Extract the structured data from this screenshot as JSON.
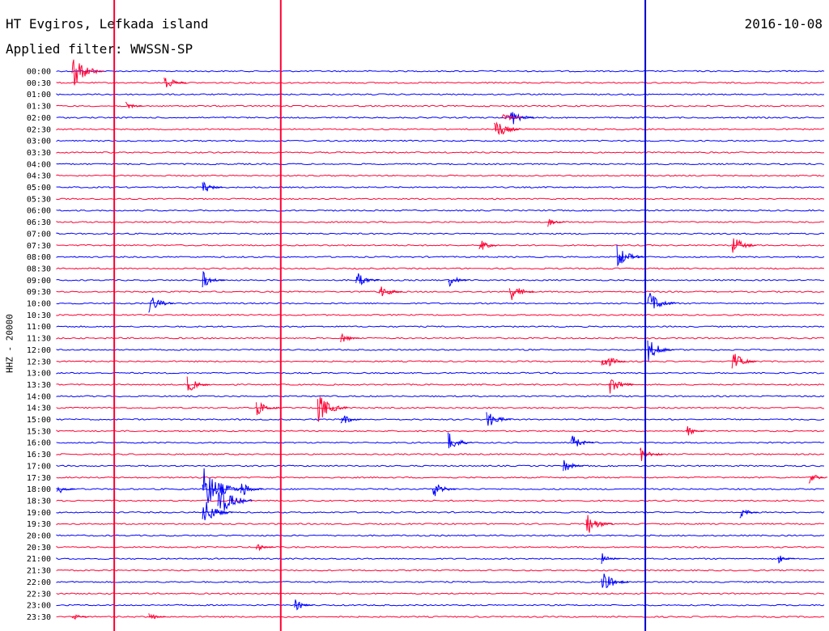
{
  "header": {
    "station": "HT Evgiros, Lefkada island",
    "date": "2016-10-08",
    "filter": "Applied filter: WWSSN-SP"
  },
  "chart_data": {
    "type": "line",
    "title": "HT Evgiros, Lefkada island",
    "ylabel": "HHZ - 20000",
    "ytick_labels": [
      "00:00",
      "00:30",
      "01:00",
      "01:30",
      "02:00",
      "02:30",
      "03:00",
      "03:30",
      "04:00",
      "04:30",
      "05:00",
      "05:30",
      "06:00",
      "06:30",
      "07:00",
      "07:30",
      "08:00",
      "08:30",
      "09:00",
      "09:30",
      "10:00",
      "10:30",
      "11:00",
      "11:30",
      "12:00",
      "12:30",
      "13:00",
      "13:30",
      "14:00",
      "14:30",
      "15:00",
      "15:30",
      "16:00",
      "16:30",
      "17:00",
      "17:30",
      "18:00",
      "18:30",
      "19:00",
      "19:30",
      "20:00",
      "20:30",
      "21:00",
      "21:30",
      "22:00",
      "22:30",
      "23:00",
      "23:30"
    ],
    "trace_colors": [
      "#0000ff",
      "#ff0033"
    ],
    "tall_spikes": [
      {
        "fraction": 0.075,
        "color": "#ff0033"
      },
      {
        "fraction": 0.292,
        "color": "#ff0033"
      },
      {
        "fraction": 0.767,
        "color": "#0000cc"
      }
    ],
    "events": [
      {
        "row": 0,
        "fraction": 0.02,
        "amp": 22,
        "color": "#ff0033"
      },
      {
        "row": 1,
        "fraction": 0.14,
        "amp": 12,
        "color": "#ff0033"
      },
      {
        "row": 3,
        "fraction": 0.09,
        "amp": 6,
        "color": "#ff0033"
      },
      {
        "row": 4,
        "fraction": 0.59,
        "amp": 14,
        "color": "#0000ff"
      },
      {
        "row": 4,
        "fraction": 0.58,
        "amp": 10,
        "color": "#ff0033"
      },
      {
        "row": 5,
        "fraction": 0.57,
        "amp": 16,
        "color": "#ff0033"
      },
      {
        "row": 10,
        "fraction": 0.19,
        "amp": 10,
        "color": "#0000ff"
      },
      {
        "row": 13,
        "fraction": 0.64,
        "amp": 6,
        "color": "#ff0033"
      },
      {
        "row": 15,
        "fraction": 0.55,
        "amp": 10,
        "color": "#ff0033"
      },
      {
        "row": 15,
        "fraction": 0.88,
        "amp": 14,
        "color": "#ff0033"
      },
      {
        "row": 16,
        "fraction": 0.73,
        "amp": 16,
        "color": "#0000ff"
      },
      {
        "row": 18,
        "fraction": 0.19,
        "amp": 12,
        "color": "#0000ff"
      },
      {
        "row": 18,
        "fraction": 0.39,
        "amp": 12,
        "color": "#0000ff"
      },
      {
        "row": 18,
        "fraction": 0.51,
        "amp": 10,
        "color": "#0000ff"
      },
      {
        "row": 19,
        "fraction": 0.42,
        "amp": 12,
        "color": "#ff0033"
      },
      {
        "row": 19,
        "fraction": 0.59,
        "amp": 14,
        "color": "#ff0033"
      },
      {
        "row": 20,
        "fraction": 0.12,
        "amp": 14,
        "color": "#0000ff"
      },
      {
        "row": 20,
        "fraction": 0.77,
        "amp": 18,
        "color": "#0000ff"
      },
      {
        "row": 23,
        "fraction": 0.37,
        "amp": 8,
        "color": "#ff0033"
      },
      {
        "row": 24,
        "fraction": 0.77,
        "amp": 16,
        "color": "#0000ff"
      },
      {
        "row": 25,
        "fraction": 0.71,
        "amp": 14,
        "color": "#ff0033"
      },
      {
        "row": 25,
        "fraction": 0.88,
        "amp": 14,
        "color": "#ff0033"
      },
      {
        "row": 27,
        "fraction": 0.17,
        "amp": 12,
        "color": "#ff0033"
      },
      {
        "row": 27,
        "fraction": 0.72,
        "amp": 14,
        "color": "#ff0033"
      },
      {
        "row": 29,
        "fraction": 0.26,
        "amp": 12,
        "color": "#ff0033"
      },
      {
        "row": 29,
        "fraction": 0.34,
        "amp": 20,
        "color": "#ff0033"
      },
      {
        "row": 30,
        "fraction": 0.37,
        "amp": 10,
        "color": "#0000ff"
      },
      {
        "row": 30,
        "fraction": 0.56,
        "amp": 14,
        "color": "#0000ff"
      },
      {
        "row": 31,
        "fraction": 0.82,
        "amp": 8,
        "color": "#ff0033"
      },
      {
        "row": 32,
        "fraction": 0.51,
        "amp": 14,
        "color": "#0000ff"
      },
      {
        "row": 32,
        "fraction": 0.67,
        "amp": 12,
        "color": "#0000ff"
      },
      {
        "row": 33,
        "fraction": 0.76,
        "amp": 12,
        "color": "#ff0033"
      },
      {
        "row": 34,
        "fraction": 0.66,
        "amp": 10,
        "color": "#0000ff"
      },
      {
        "row": 35,
        "fraction": 0.98,
        "amp": 8,
        "color": "#ff0033"
      },
      {
        "row": 36,
        "fraction": 0.0,
        "amp": 8,
        "color": "#0000ff"
      },
      {
        "row": 36,
        "fraction": 0.19,
        "amp": 30,
        "color": "#0000ff"
      },
      {
        "row": 36,
        "fraction": 0.24,
        "amp": 12,
        "color": "#0000ff"
      },
      {
        "row": 36,
        "fraction": 0.49,
        "amp": 12,
        "color": "#0000ff"
      },
      {
        "row": 37,
        "fraction": 0.21,
        "amp": 24,
        "color": "#0000ff"
      },
      {
        "row": 38,
        "fraction": 0.19,
        "amp": 20,
        "color": "#0000ff"
      },
      {
        "row": 38,
        "fraction": 0.89,
        "amp": 8,
        "color": "#0000ff"
      },
      {
        "row": 39,
        "fraction": 0.69,
        "amp": 16,
        "color": "#ff0033"
      },
      {
        "row": 41,
        "fraction": 0.26,
        "amp": 6,
        "color": "#ff0033"
      },
      {
        "row": 42,
        "fraction": 0.71,
        "amp": 8,
        "color": "#0000ff"
      },
      {
        "row": 42,
        "fraction": 0.94,
        "amp": 6,
        "color": "#0000ff"
      },
      {
        "row": 44,
        "fraction": 0.71,
        "amp": 16,
        "color": "#0000ff"
      },
      {
        "row": 46,
        "fraction": 0.31,
        "amp": 8,
        "color": "#0000ff"
      },
      {
        "row": 47,
        "fraction": 0.02,
        "amp": 6,
        "color": "#ff0033"
      },
      {
        "row": 47,
        "fraction": 0.12,
        "amp": 6,
        "color": "#ff0033"
      }
    ]
  }
}
